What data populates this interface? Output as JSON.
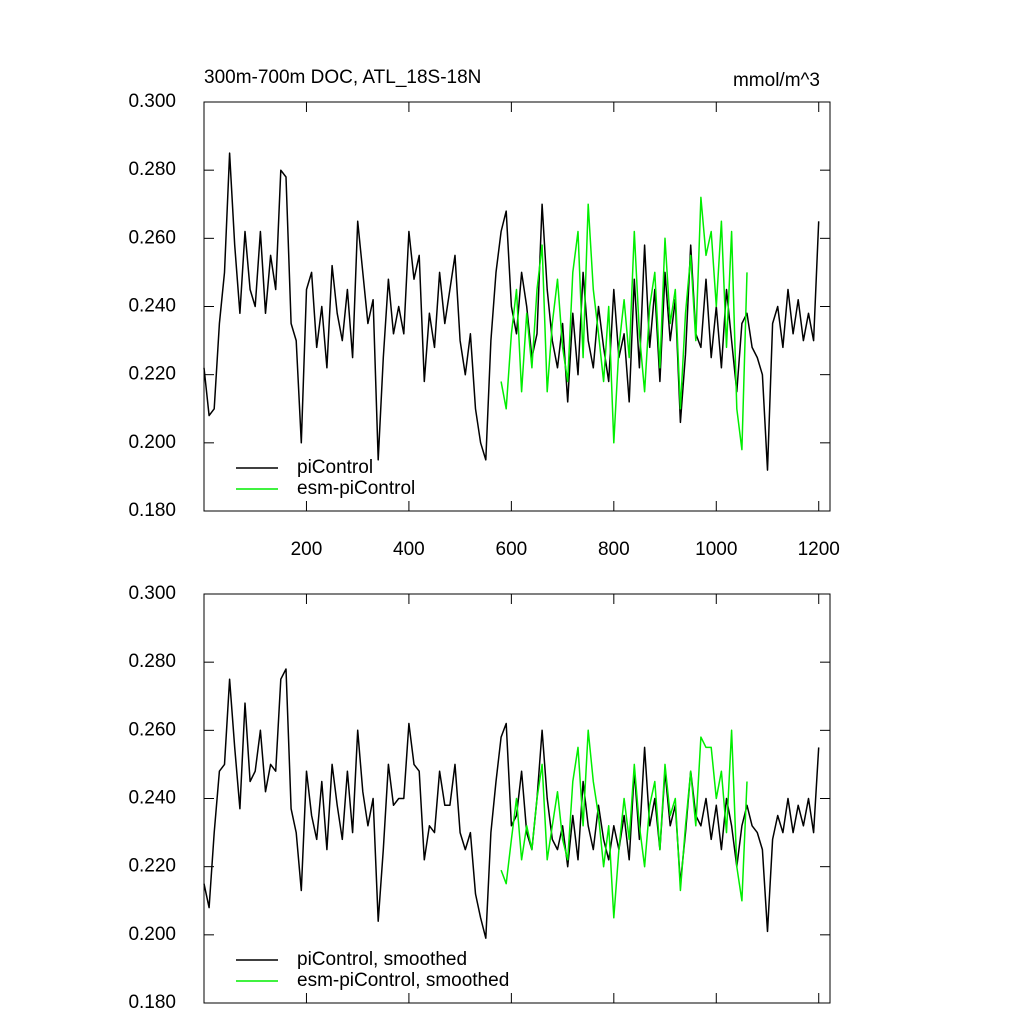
{
  "chart_data": [
    {
      "type": "line",
      "title": "300m-700m DOC, ATL_18S-18N",
      "units": "mmol/m^3",
      "x": [
        0,
        10,
        20,
        30,
        40,
        50,
        60,
        70,
        80,
        90,
        100,
        110,
        120,
        130,
        140,
        150,
        160,
        170,
        180,
        190,
        200,
        210,
        220,
        230,
        240,
        250,
        260,
        270,
        280,
        290,
        300,
        310,
        320,
        330,
        340,
        350,
        360,
        370,
        380,
        390,
        400,
        410,
        420,
        430,
        440,
        450,
        460,
        470,
        480,
        490,
        500,
        510,
        520,
        530,
        540,
        550,
        560,
        570,
        580,
        590,
        600,
        610,
        620,
        630,
        640,
        650,
        660,
        670,
        680,
        690,
        700,
        710,
        720,
        730,
        740,
        750,
        760,
        770,
        780,
        790,
        800,
        810,
        820,
        830,
        840,
        850,
        860,
        870,
        880,
        890,
        900,
        910,
        920,
        930,
        940,
        950,
        960,
        970,
        980,
        990,
        1000,
        1010,
        1020,
        1030,
        1040,
        1050,
        1060,
        1070,
        1080,
        1090,
        1100,
        1110,
        1120,
        1130,
        1140,
        1150,
        1160,
        1170,
        1180,
        1190,
        1200
      ],
      "series": [
        {
          "name": "piControl",
          "color": "#000000",
          "values": [
            0.222,
            0.208,
            0.21,
            0.235,
            0.25,
            0.285,
            0.258,
            0.238,
            0.262,
            0.245,
            0.24,
            0.262,
            0.238,
            0.255,
            0.245,
            0.28,
            0.278,
            0.235,
            0.23,
            0.2,
            0.245,
            0.25,
            0.228,
            0.24,
            0.222,
            0.252,
            0.238,
            0.23,
            0.245,
            0.225,
            0.265,
            0.25,
            0.235,
            0.242,
            0.195,
            0.225,
            0.248,
            0.232,
            0.24,
            0.232,
            0.262,
            0.248,
            0.255,
            0.218,
            0.238,
            0.228,
            0.25,
            0.235,
            0.245,
            0.255,
            0.23,
            0.22,
            0.232,
            0.21,
            0.2,
            0.195,
            0.23,
            0.25,
            0.262,
            0.268,
            0.24,
            0.232,
            0.25,
            0.24,
            0.225,
            0.232,
            0.27,
            0.245,
            0.23,
            0.222,
            0.235,
            0.212,
            0.238,
            0.22,
            0.25,
            0.23,
            0.222,
            0.24,
            0.228,
            0.218,
            0.245,
            0.225,
            0.232,
            0.212,
            0.248,
            0.222,
            0.258,
            0.228,
            0.245,
            0.218,
            0.25,
            0.23,
            0.242,
            0.206,
            0.226,
            0.258,
            0.232,
            0.228,
            0.248,
            0.225,
            0.24,
            0.222,
            0.245,
            0.23,
            0.215,
            0.235,
            0.238,
            0.228,
            0.225,
            0.22,
            0.192,
            0.235,
            0.24,
            0.228,
            0.245,
            0.232,
            0.242,
            0.23,
            0.238,
            0.23,
            0.265
          ]
        },
        {
          "name": "esm-piControl",
          "color": "#00ee00",
          "values": [
            null,
            null,
            null,
            null,
            null,
            null,
            null,
            null,
            null,
            null,
            null,
            null,
            null,
            null,
            null,
            null,
            null,
            null,
            null,
            null,
            null,
            null,
            null,
            null,
            null,
            null,
            null,
            null,
            null,
            null,
            null,
            null,
            null,
            null,
            null,
            null,
            null,
            null,
            null,
            null,
            null,
            null,
            null,
            null,
            null,
            null,
            null,
            null,
            null,
            null,
            null,
            null,
            null,
            null,
            null,
            null,
            null,
            null,
            0.218,
            0.21,
            0.232,
            0.245,
            0.215,
            0.238,
            0.222,
            0.245,
            0.258,
            0.215,
            0.235,
            0.248,
            0.228,
            0.218,
            0.25,
            0.262,
            0.225,
            0.27,
            0.245,
            0.232,
            0.218,
            0.24,
            0.2,
            0.228,
            0.242,
            0.225,
            0.262,
            0.232,
            0.215,
            0.24,
            0.25,
            0.222,
            0.26,
            0.235,
            0.245,
            0.21,
            0.238,
            0.255,
            0.23,
            0.272,
            0.255,
            0.262,
            0.24,
            0.265,
            0.228,
            0.262,
            0.21,
            0.198,
            0.25,
            null,
            null,
            null,
            null,
            null,
            null,
            null,
            null,
            null,
            null,
            null,
            null,
            null,
            null
          ]
        }
      ],
      "xlim": [
        0,
        1222
      ],
      "xticks": [
        200,
        400,
        600,
        800,
        1000,
        1200
      ],
      "xtick_labels": true,
      "ylim": [
        0.18,
        0.3
      ],
      "yticks": [
        {
          "value": 0.18,
          "label": "0.180"
        },
        {
          "value": 0.2,
          "label": "0.200"
        },
        {
          "value": 0.22,
          "label": "0.220"
        },
        {
          "value": 0.24,
          "label": "0.240"
        },
        {
          "value": 0.26,
          "label": "0.260"
        },
        {
          "value": 0.28,
          "label": "0.280"
        },
        {
          "value": 0.3,
          "label": "0.300"
        }
      ],
      "legend": "lower left"
    },
    {
      "type": "line",
      "x": [
        0,
        10,
        20,
        30,
        40,
        50,
        60,
        70,
        80,
        90,
        100,
        110,
        120,
        130,
        140,
        150,
        160,
        170,
        180,
        190,
        200,
        210,
        220,
        230,
        240,
        250,
        260,
        270,
        280,
        290,
        300,
        310,
        320,
        330,
        340,
        350,
        360,
        370,
        380,
        390,
        400,
        410,
        420,
        430,
        440,
        450,
        460,
        470,
        480,
        490,
        500,
        510,
        520,
        530,
        540,
        550,
        560,
        570,
        580,
        590,
        600,
        610,
        620,
        630,
        640,
        650,
        660,
        670,
        680,
        690,
        700,
        710,
        720,
        730,
        740,
        750,
        760,
        770,
        780,
        790,
        800,
        810,
        820,
        830,
        840,
        850,
        860,
        870,
        880,
        890,
        900,
        910,
        920,
        930,
        940,
        950,
        960,
        970,
        980,
        990,
        1000,
        1010,
        1020,
        1030,
        1040,
        1050,
        1060,
        1070,
        1080,
        1090,
        1100,
        1110,
        1120,
        1130,
        1140,
        1150,
        1160,
        1170,
        1180,
        1190,
        1200
      ],
      "series": [
        {
          "name": "piControl, smoothed",
          "color": "#000000",
          "values": [
            0.215,
            0.208,
            0.23,
            0.248,
            0.25,
            0.275,
            0.255,
            0.237,
            0.268,
            0.245,
            0.248,
            0.26,
            0.242,
            0.25,
            0.248,
            0.275,
            0.278,
            0.237,
            0.23,
            0.213,
            0.248,
            0.235,
            0.228,
            0.245,
            0.225,
            0.25,
            0.238,
            0.228,
            0.248,
            0.23,
            0.26,
            0.242,
            0.232,
            0.24,
            0.204,
            0.225,
            0.25,
            0.238,
            0.24,
            0.24,
            0.262,
            0.25,
            0.248,
            0.222,
            0.232,
            0.23,
            0.248,
            0.238,
            0.238,
            0.25,
            0.23,
            0.225,
            0.23,
            0.212,
            0.205,
            0.199,
            0.23,
            0.245,
            0.258,
            0.262,
            0.232,
            0.235,
            0.248,
            0.23,
            0.225,
            0.24,
            0.26,
            0.24,
            0.228,
            0.225,
            0.232,
            0.22,
            0.235,
            0.222,
            0.245,
            0.232,
            0.225,
            0.238,
            0.228,
            0.222,
            0.232,
            0.225,
            0.235,
            0.222,
            0.248,
            0.228,
            0.255,
            0.232,
            0.24,
            0.225,
            0.248,
            0.232,
            0.238,
            0.215,
            0.23,
            0.248,
            0.235,
            0.232,
            0.24,
            0.228,
            0.238,
            0.225,
            0.24,
            0.232,
            0.22,
            0.232,
            0.238,
            0.232,
            0.23,
            0.225,
            0.201,
            0.228,
            0.235,
            0.23,
            0.24,
            0.23,
            0.238,
            0.232,
            0.24,
            0.23,
            0.255
          ]
        },
        {
          "name": "esm-piControl, smoothed",
          "color": "#00ee00",
          "values": [
            null,
            null,
            null,
            null,
            null,
            null,
            null,
            null,
            null,
            null,
            null,
            null,
            null,
            null,
            null,
            null,
            null,
            null,
            null,
            null,
            null,
            null,
            null,
            null,
            null,
            null,
            null,
            null,
            null,
            null,
            null,
            null,
            null,
            null,
            null,
            null,
            null,
            null,
            null,
            null,
            null,
            null,
            null,
            null,
            null,
            null,
            null,
            null,
            null,
            null,
            null,
            null,
            null,
            null,
            null,
            null,
            null,
            null,
            0.219,
            0.215,
            0.228,
            0.24,
            0.222,
            0.232,
            0.225,
            0.24,
            0.25,
            0.222,
            0.232,
            0.242,
            0.228,
            0.222,
            0.245,
            0.255,
            0.232,
            0.26,
            0.245,
            0.235,
            0.22,
            0.232,
            0.205,
            0.225,
            0.24,
            0.228,
            0.25,
            0.232,
            0.22,
            0.238,
            0.245,
            0.225,
            0.25,
            0.235,
            0.24,
            0.213,
            0.232,
            0.248,
            0.232,
            0.258,
            0.255,
            0.255,
            0.24,
            0.248,
            0.23,
            0.26,
            0.22,
            0.21,
            0.245,
            null,
            null,
            null,
            null,
            null,
            null,
            null,
            null,
            null,
            null,
            null,
            null,
            null,
            null
          ]
        }
      ],
      "xlim": [
        0,
        1222
      ],
      "xticks": [
        200,
        400,
        600,
        800,
        1000,
        1200
      ],
      "xtick_labels": false,
      "ylim": [
        0.18,
        0.3
      ],
      "yticks": [
        {
          "value": 0.18,
          "label": "0.180"
        },
        {
          "value": 0.2,
          "label": "0.200"
        },
        {
          "value": 0.22,
          "label": "0.220"
        },
        {
          "value": 0.24,
          "label": "0.240"
        },
        {
          "value": 0.26,
          "label": "0.260"
        },
        {
          "value": 0.28,
          "label": "0.280"
        },
        {
          "value": 0.3,
          "label": "0.300"
        }
      ],
      "legend": "lower left"
    }
  ]
}
